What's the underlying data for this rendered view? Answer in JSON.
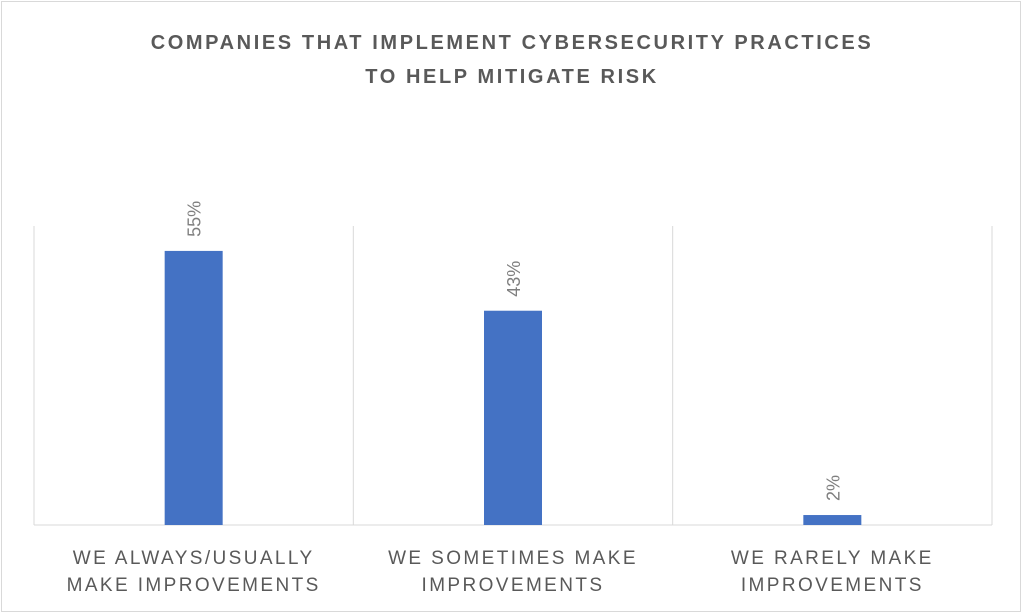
{
  "chart_data": {
    "type": "bar",
    "title_lines": [
      "COMPANIES THAT IMPLEMENT CYBERSECURITY PRACTICES",
      "TO HELP MITIGATE RISK"
    ],
    "categories": [
      [
        "WE ALWAYS/USUALLY",
        "MAKE IMPROVEMENTS"
      ],
      [
        "WE SOMETIMES MAKE",
        "IMPROVEMENTS"
      ],
      [
        "WE RARELY MAKE",
        "IMPROVEMENTS"
      ]
    ],
    "values": [
      55,
      43,
      2
    ],
    "value_labels": [
      "55%",
      "43%",
      "2%"
    ],
    "ylim": [
      0,
      60
    ],
    "bar_color": "#4472c4",
    "grid": "vertical category separators"
  }
}
